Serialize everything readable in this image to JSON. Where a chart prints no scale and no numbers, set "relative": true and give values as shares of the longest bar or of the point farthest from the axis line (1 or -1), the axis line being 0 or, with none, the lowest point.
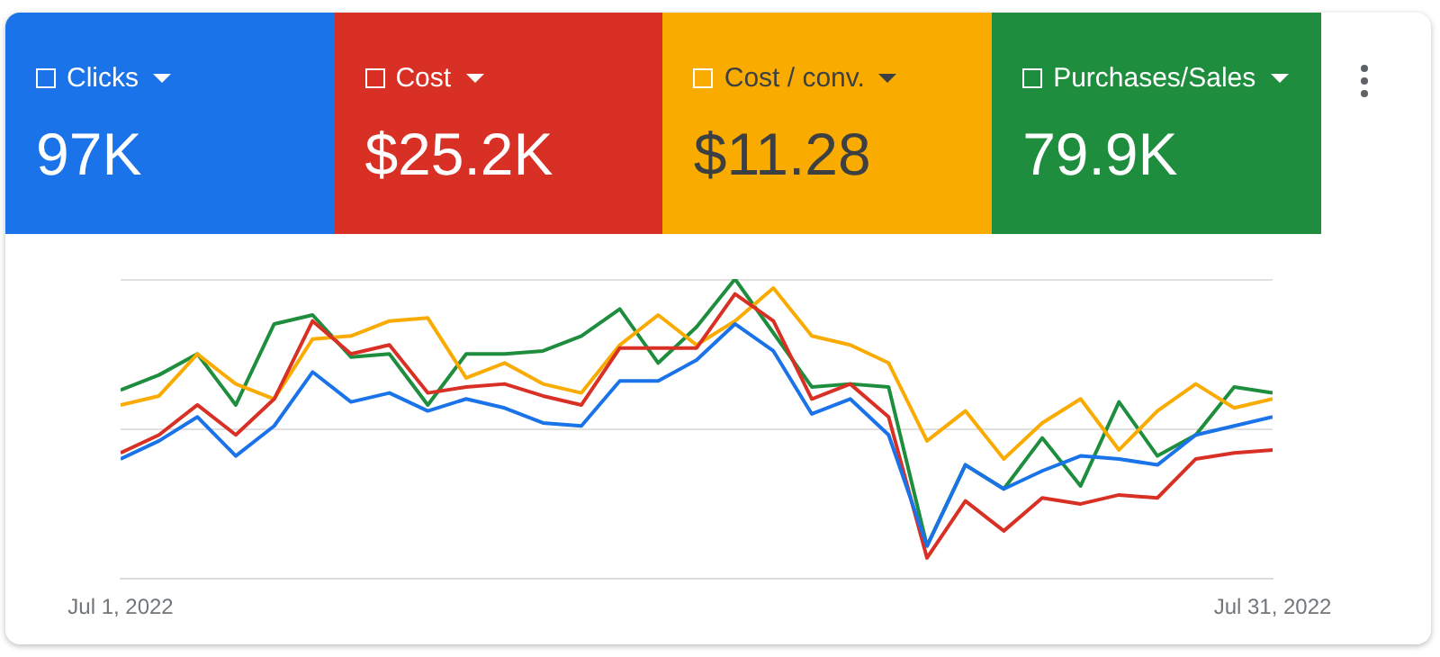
{
  "chart_data": {
    "type": "line",
    "relative": true,
    "legend": "top",
    "ref_lines": [
      {
        "axis": "y",
        "value": 0.5,
        "color": "#e0e0e0"
      },
      {
        "axis": "y",
        "value": 1,
        "color": "#e0e0e0"
      }
    ],
    "marker": "none",
    "line_style": "solid",
    "x": [
      "2022-07-01",
      "2022-07-02",
      "2022-07-03",
      "2022-07-04",
      "2022-07-05",
      "2022-07-06",
      "2022-07-07",
      "2022-07-08",
      "2022-07-09",
      "2022-07-10",
      "2022-07-11",
      "2022-07-12",
      "2022-07-13",
      "2022-07-14",
      "2022-07-15",
      "2022-07-16",
      "2022-07-17",
      "2022-07-18",
      "2022-07-19",
      "2022-07-20",
      "2022-07-21",
      "2022-07-22",
      "2022-07-23",
      "2022-07-24",
      "2022-07-25",
      "2022-07-26",
      "2022-07-27",
      "2022-07-28",
      "2022-07-29",
      "2022-07-30",
      "2022-07-31"
    ],
    "xlim": [
      "2022-07-01",
      "2022-07-31"
    ],
    "xticks": [
      {
        "value": "2022-07-01",
        "label": "Jul 1, 2022"
      },
      {
        "value": "2022-07-31",
        "label": "Jul 31, 2022"
      }
    ],
    "series": [
      {
        "name": "Clicks",
        "color": "#1a73e8",
        "values": [
          0.4,
          0.46,
          0.54,
          0.41,
          0.51,
          0.69,
          0.59,
          0.62,
          0.56,
          0.6,
          0.57,
          0.52,
          0.51,
          0.66,
          0.66,
          0.73,
          0.85,
          0.76,
          0.55,
          0.6,
          0.48,
          0.11,
          0.38,
          0.3,
          0.36,
          0.41,
          0.4,
          0.38,
          0.48,
          0.51,
          0.54
        ]
      },
      {
        "name": "Cost",
        "color": "#d93025",
        "values": [
          0.42,
          0.48,
          0.58,
          0.48,
          0.6,
          0.86,
          0.75,
          0.78,
          0.62,
          0.64,
          0.65,
          0.61,
          0.58,
          0.77,
          0.77,
          0.77,
          0.95,
          0.86,
          0.6,
          0.65,
          0.54,
          0.07,
          0.26,
          0.16,
          0.27,
          0.25,
          0.28,
          0.27,
          0.4,
          0.42,
          0.43
        ]
      },
      {
        "name": "Cost / conv.",
        "color": "#f9ab00",
        "values": [
          0.58,
          0.61,
          0.75,
          0.65,
          0.6,
          0.8,
          0.81,
          0.86,
          0.87,
          0.67,
          0.72,
          0.65,
          0.62,
          0.78,
          0.88,
          0.78,
          0.86,
          0.97,
          0.81,
          0.78,
          0.72,
          0.46,
          0.56,
          0.4,
          0.52,
          0.6,
          0.43,
          0.56,
          0.65,
          0.57,
          0.6
        ]
      },
      {
        "name": "Purchases/Sales",
        "color": "#1e8e3e",
        "values": [
          0.63,
          0.68,
          0.75,
          0.58,
          0.85,
          0.88,
          0.74,
          0.75,
          0.58,
          0.75,
          0.75,
          0.76,
          0.81,
          0.9,
          0.72,
          0.84,
          1.0,
          0.82,
          0.64,
          0.65,
          0.64,
          0.11,
          0.38,
          0.3,
          0.47,
          0.31,
          0.59,
          0.41,
          0.48,
          0.64,
          0.62
        ]
      }
    ],
    "annotations": [
      "97K",
      "$25.2K",
      "$11.28",
      "79.9K"
    ]
  }
}
